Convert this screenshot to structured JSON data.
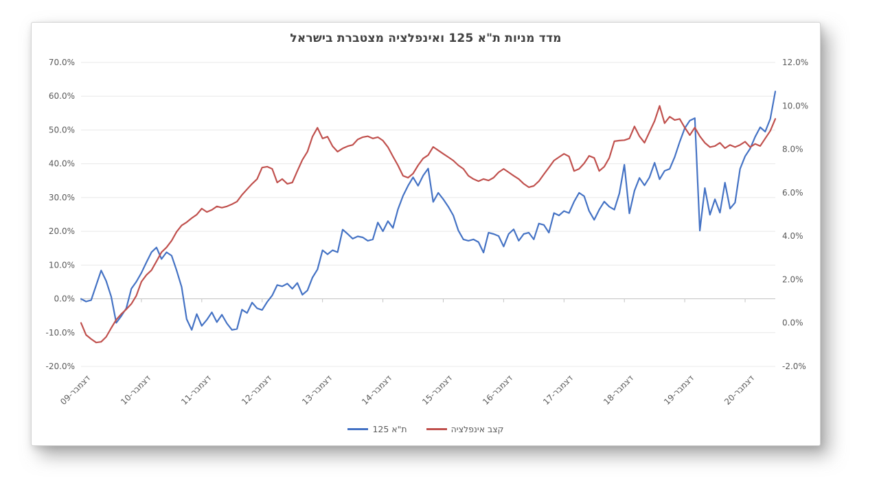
{
  "chart_data": {
    "type": "line",
    "title": "מדד מניות ת\"א 125 ואינפלציה מצטברת בישראל",
    "x_unit": "monthly, December 2009 – mid 2021",
    "x_tick_labels": [
      "דצמבר-09",
      "דצמבר-10",
      "דצמבר-11",
      "דצמבר-12",
      "דצמבר-13",
      "דצמבר-14",
      "דצמבר-15",
      "דצמבר-16",
      "דצמבר-17",
      "דצמבר-18",
      "דצמבר-19",
      "דצמבר-20"
    ],
    "left_axis": {
      "min": -20,
      "max": 70,
      "labels": [
        "70.0%",
        "60.0%",
        "50.0%",
        "40.0%",
        "30.0%",
        "20.0%",
        "10.0%",
        "0.0%",
        "-10.0%",
        "-20.0%"
      ]
    },
    "right_axis": {
      "min": -2,
      "max": 12,
      "labels": [
        "12.0%",
        "10.0%",
        "8.0%",
        "6.0%",
        "4.0%",
        "2.0%",
        "0.0%",
        "-2.0%"
      ]
    },
    "grid": "horizontal",
    "legend_position": "bottom",
    "series": [
      {
        "name": "ת\"א 125",
        "axis": "left",
        "color": "#4472C4",
        "values": [
          0.0,
          -0.8,
          -0.4,
          4.0,
          8.4,
          5.3,
          0.6,
          -7.1,
          -5.1,
          -2.8,
          3.0,
          5.1,
          7.7,
          10.8,
          13.8,
          15.2,
          11.8,
          13.8,
          12.8,
          8.4,
          3.5,
          -6.0,
          -9.2,
          -4.5,
          -8.0,
          -6.2,
          -4.0,
          -6.9,
          -4.7,
          -7.3,
          -9.2,
          -8.9,
          -3.2,
          -4.2,
          -1.1,
          -2.8,
          -3.3,
          -0.9,
          1.0,
          4.1,
          3.7,
          4.5,
          3.0,
          4.7,
          1.2,
          2.5,
          6.3,
          8.7,
          14.4,
          13.2,
          14.4,
          13.8,
          20.5,
          19.2,
          17.8,
          18.5,
          18.2,
          17.2,
          17.6,
          22.6,
          20.0,
          23.0,
          21.0,
          26.5,
          30.5,
          33.5,
          36.0,
          33.5,
          36.5,
          38.6,
          28.7,
          31.4,
          29.5,
          27.3,
          24.7,
          20.2,
          17.6,
          17.2,
          17.6,
          16.8,
          13.7,
          19.6,
          19.2,
          18.6,
          15.5,
          19.2,
          20.6,
          17.2,
          19.2,
          19.6,
          17.6,
          22.3,
          21.9,
          19.6,
          25.4,
          24.7,
          26.0,
          25.4,
          28.8,
          31.4,
          30.4,
          26.0,
          23.4,
          26.4,
          28.8,
          27.3,
          26.4,
          31.2,
          39.7,
          25.3,
          32.0,
          35.8,
          33.6,
          36.0,
          40.3,
          35.4,
          37.9,
          38.5,
          42.0,
          46.5,
          50.5,
          52.8,
          53.5,
          20.2,
          32.8,
          24.9,
          29.5,
          25.5,
          34.4,
          26.7,
          28.5,
          38.5,
          42.2,
          44.5,
          48.0,
          50.8,
          49.5,
          53.3,
          61.4
        ]
      },
      {
        "name": "קצב אינפלציה",
        "axis": "right",
        "color": "#C0504D",
        "values": [
          0.0,
          -0.55,
          -0.74,
          -0.9,
          -0.87,
          -0.64,
          -0.23,
          0.15,
          0.41,
          0.63,
          0.88,
          1.26,
          1.9,
          2.21,
          2.43,
          2.84,
          3.26,
          3.48,
          3.79,
          4.2,
          4.49,
          4.64,
          4.83,
          4.99,
          5.27,
          5.11,
          5.21,
          5.37,
          5.31,
          5.37,
          5.47,
          5.59,
          5.9,
          6.16,
          6.41,
          6.63,
          7.16,
          7.2,
          7.1,
          6.47,
          6.63,
          6.41,
          6.47,
          7.0,
          7.51,
          7.89,
          8.58,
          8.99,
          8.5,
          8.58,
          8.14,
          7.89,
          8.04,
          8.14,
          8.2,
          8.45,
          8.56,
          8.6,
          8.5,
          8.56,
          8.4,
          8.1,
          7.67,
          7.26,
          6.78,
          6.69,
          6.88,
          7.26,
          7.58,
          7.73,
          8.11,
          7.95,
          7.79,
          7.64,
          7.48,
          7.26,
          7.1,
          6.78,
          6.63,
          6.53,
          6.63,
          6.56,
          6.69,
          6.94,
          7.1,
          6.94,
          6.78,
          6.63,
          6.41,
          6.25,
          6.31,
          6.53,
          6.85,
          7.16,
          7.48,
          7.64,
          7.79,
          7.67,
          7.0,
          7.1,
          7.35,
          7.7,
          7.6,
          7.0,
          7.2,
          7.6,
          8.37,
          8.4,
          8.42,
          8.5,
          9.05,
          8.6,
          8.3,
          8.8,
          9.3,
          10.0,
          9.2,
          9.5,
          9.35,
          9.4,
          9.0,
          8.65,
          9.0,
          8.6,
          8.3,
          8.1,
          8.15,
          8.3,
          8.05,
          8.2,
          8.1,
          8.2,
          8.35,
          8.1,
          8.25,
          8.15,
          8.5,
          8.85,
          9.4
        ]
      }
    ]
  }
}
